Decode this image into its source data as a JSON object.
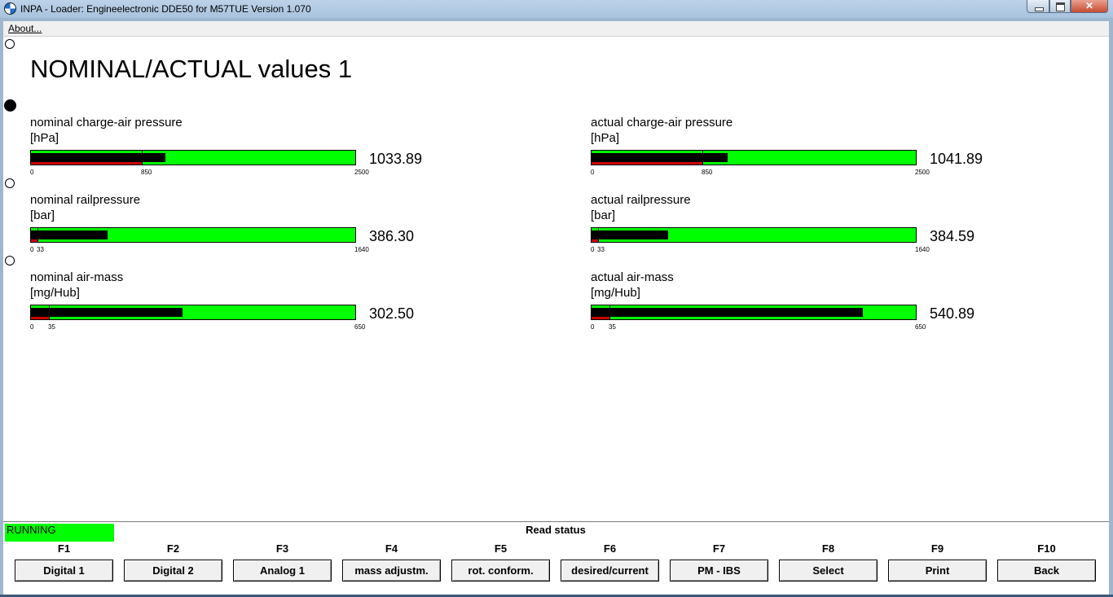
{
  "window": {
    "title": "INPA - Loader:  Engineelectronic DDE50 for M57TUE Version 1.070"
  },
  "menu": {
    "about": "About..."
  },
  "page_title": "NOMINAL/ACTUAL values 1",
  "gauges": {
    "nom_charge": {
      "label": "nominal charge-air pressure",
      "unit": "[hPa]",
      "value": "1033.89",
      "ticks": {
        "min": "0",
        "mark": "850",
        "max": "2500"
      },
      "fill_fraction": 0.4136,
      "red_fraction": 0.34
    },
    "act_charge": {
      "label": "actual charge-air pressure",
      "unit": "[hPa]",
      "value": "1041.89",
      "ticks": {
        "min": "0",
        "mark": "850",
        "max": "2500"
      },
      "fill_fraction": 0.4168,
      "red_fraction": 0.34
    },
    "nom_rail": {
      "label": "nominal railpressure",
      "unit": "[bar]",
      "value": "386.30",
      "ticks": {
        "min": "0",
        "mark": "33",
        "max": "1640"
      },
      "fill_fraction": 0.2356,
      "red_fraction": 0.0201
    },
    "act_rail": {
      "label": "actual railpressure",
      "unit": "[bar]",
      "value": "384.59",
      "ticks": {
        "min": "0",
        "mark": "33",
        "max": "1640"
      },
      "fill_fraction": 0.2345,
      "red_fraction": 0.0201
    },
    "nom_air": {
      "label": "nominal air-mass",
      "unit": "[mg/Hub]",
      "value": "302.50",
      "ticks": {
        "min": "0",
        "mark": "35",
        "max": "650"
      },
      "fill_fraction": 0.4654,
      "red_fraction": 0.0538
    },
    "act_air": {
      "label": "actual air-mass",
      "unit": "[mg/Hub]",
      "value": "540.89",
      "ticks": {
        "min": "0",
        "mark": "35",
        "max": "650"
      },
      "fill_fraction": 0.8321,
      "red_fraction": 0.0538
    }
  },
  "status": {
    "running": "RUNNING",
    "read_status": "Read status"
  },
  "fkeys": [
    {
      "key": "F1",
      "label": "Digital 1"
    },
    {
      "key": "F2",
      "label": "Digital 2"
    },
    {
      "key": "F3",
      "label": "Analog 1"
    },
    {
      "key": "F4",
      "label": "mass adjustm."
    },
    {
      "key": "F5",
      "label": "rot. conform."
    },
    {
      "key": "F6",
      "label": "desired/current"
    },
    {
      "key": "F7",
      "label": "PM - IBS"
    },
    {
      "key": "F8",
      "label": "Select"
    },
    {
      "key": "F9",
      "label": "Print"
    },
    {
      "key": "F10",
      "label": "Back"
    }
  ],
  "colors": {
    "gauge_ok": "#00ff00",
    "gauge_fill": "#000000",
    "gauge_red": "#d00000",
    "running_bg": "#00ff00"
  }
}
